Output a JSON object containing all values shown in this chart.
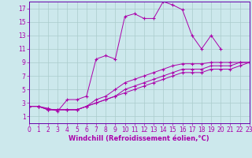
{
  "xlabel": "Windchill (Refroidissement éolien,°C)",
  "background_color": "#cce8ec",
  "grid_color": "#aacccc",
  "line_color": "#aa00aa",
  "spine_color": "#6600aa",
  "xlim": [
    0,
    23
  ],
  "ylim": [
    0,
    18
  ],
  "xticks": [
    0,
    1,
    2,
    3,
    4,
    5,
    6,
    7,
    8,
    9,
    10,
    11,
    12,
    13,
    14,
    15,
    16,
    17,
    18,
    19,
    20,
    21,
    22,
    23
  ],
  "yticks": [
    1,
    3,
    5,
    7,
    9,
    11,
    13,
    15,
    17
  ],
  "series1_x": [
    0,
    1,
    2,
    3,
    4,
    5,
    6,
    7,
    8,
    9,
    10,
    11,
    12,
    13,
    14,
    15,
    16,
    17,
    18,
    19,
    20
  ],
  "series1_y": [
    2.5,
    2.5,
    2.2,
    1.8,
    3.5,
    3.5,
    4.0,
    9.5,
    10.0,
    9.5,
    15.8,
    16.2,
    15.5,
    15.5,
    18.0,
    17.5,
    16.8,
    13.0,
    11.0,
    13.0,
    11.0
  ],
  "series2_x": [
    0,
    1,
    2,
    3,
    4,
    5,
    6,
    7,
    8,
    9,
    10,
    11,
    12,
    13,
    14,
    15,
    16,
    17,
    18,
    19,
    20,
    21,
    22,
    23
  ],
  "series2_y": [
    2.5,
    2.5,
    2.0,
    2.0,
    2.0,
    2.0,
    2.5,
    3.5,
    4.0,
    5.0,
    6.0,
    6.5,
    7.0,
    7.5,
    8.0,
    8.5,
    8.8,
    8.8,
    8.8,
    9.0,
    9.0,
    9.0,
    9.0,
    9.0
  ],
  "series3_x": [
    0,
    1,
    2,
    3,
    4,
    5,
    6,
    7,
    8,
    9,
    10,
    11,
    12,
    13,
    14,
    15,
    16,
    17,
    18,
    19,
    20,
    21,
    22,
    23
  ],
  "series3_y": [
    2.5,
    2.5,
    2.0,
    2.0,
    2.0,
    2.0,
    2.5,
    3.0,
    3.5,
    4.0,
    4.5,
    5.0,
    5.5,
    6.0,
    6.5,
    7.0,
    7.5,
    7.5,
    7.5,
    8.0,
    8.0,
    8.0,
    8.5,
    9.0
  ],
  "series4_x": [
    0,
    1,
    2,
    3,
    4,
    5,
    6,
    7,
    8,
    9,
    10,
    11,
    12,
    13,
    14,
    15,
    16,
    17,
    18,
    19,
    20,
    21,
    22,
    23
  ],
  "series4_y": [
    2.5,
    2.5,
    2.0,
    2.0,
    2.0,
    2.0,
    2.5,
    3.0,
    3.5,
    4.0,
    5.0,
    5.5,
    6.0,
    6.5,
    7.0,
    7.5,
    8.0,
    8.0,
    8.0,
    8.5,
    8.5,
    8.5,
    9.0,
    9.0
  ],
  "tick_fontsize": 5.5,
  "xlabel_fontsize": 6.0
}
